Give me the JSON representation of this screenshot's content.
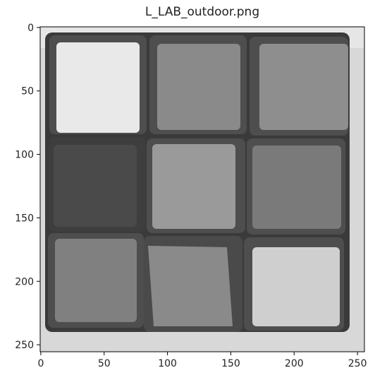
{
  "chart_data": {
    "type": "image",
    "title": "L_LAB_outdoor.png",
    "xlim": [
      -0.5,
      255.5
    ],
    "ylim": [
      255.5,
      -0.5
    ],
    "xticks": [
      0,
      50,
      100,
      150,
      200,
      250
    ],
    "yticks": [
      0,
      50,
      100,
      150,
      200,
      250
    ]
  }
}
